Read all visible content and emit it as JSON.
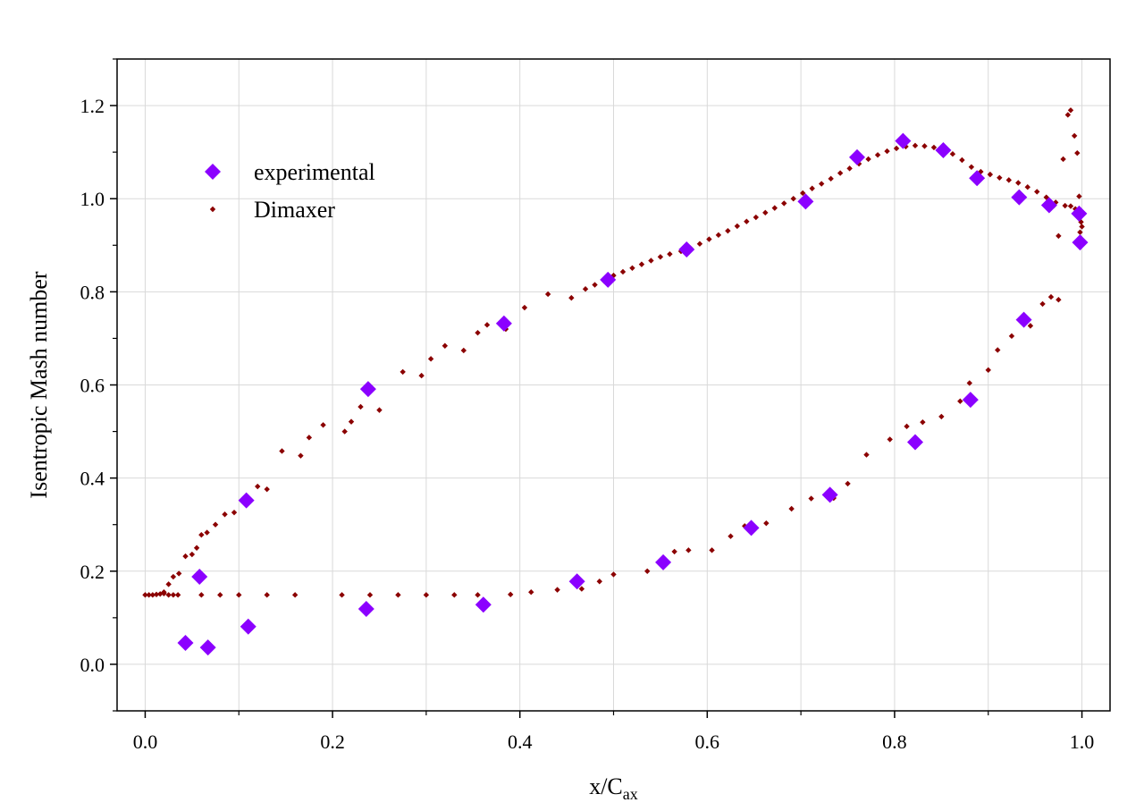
{
  "chart_data": {
    "type": "scatter",
    "title": "",
    "xlabel": "x/C",
    "xlabel_sub": "ax",
    "ylabel": "Isentropic Mash number",
    "xlim": [
      -0.03,
      1.03
    ],
    "ylim": [
      -0.1,
      1.3
    ],
    "x_ticks": [
      0.0,
      0.2,
      0.4,
      0.6,
      0.8,
      1.0
    ],
    "x_tick_labels": [
      "0.0",
      "0.2",
      "0.4",
      "0.6",
      "0.8",
      "1.0"
    ],
    "y_ticks": [
      0.0,
      0.2,
      0.4,
      0.6,
      0.8,
      1.0,
      1.2
    ],
    "y_tick_labels": [
      "0.0",
      "0.2",
      "0.4",
      "0.6",
      "0.8",
      "1.0",
      "1.2"
    ],
    "grid": true,
    "legend_position": "top-left",
    "series": [
      {
        "name": "experimental",
        "marker": "diamond",
        "color": "#8b00ff",
        "points": [
          [
            0.043,
            0.046
          ],
          [
            0.058,
            0.188
          ],
          [
            0.067,
            0.036
          ],
          [
            0.108,
            0.352
          ],
          [
            0.11,
            0.081
          ],
          [
            0.236,
            0.119
          ],
          [
            0.238,
            0.591
          ],
          [
            0.361,
            0.128
          ],
          [
            0.383,
            0.732
          ],
          [
            0.461,
            0.178
          ],
          [
            0.494,
            0.826
          ],
          [
            0.553,
            0.219
          ],
          [
            0.578,
            0.891
          ],
          [
            0.647,
            0.293
          ],
          [
            0.705,
            0.994
          ],
          [
            0.731,
            0.364
          ],
          [
            0.76,
            1.089
          ],
          [
            0.809,
            1.124
          ],
          [
            0.822,
            0.477
          ],
          [
            0.852,
            1.104
          ],
          [
            0.881,
            0.568
          ],
          [
            0.888,
            1.044
          ],
          [
            0.933,
            1.003
          ],
          [
            0.938,
            0.74
          ],
          [
            0.965,
            0.986
          ],
          [
            0.997,
            0.968
          ],
          [
            0.998,
            0.906
          ]
        ]
      },
      {
        "name": "Dimaxer",
        "marker": "small-diamond",
        "color": "#8b0000",
        "points": [
          [
            0.0,
            0.149
          ],
          [
            0.004,
            0.149
          ],
          [
            0.008,
            0.149
          ],
          [
            0.012,
            0.15
          ],
          [
            0.016,
            0.151
          ],
          [
            0.02,
            0.152
          ],
          [
            0.025,
            0.149
          ],
          [
            0.03,
            0.149
          ],
          [
            0.035,
            0.149
          ],
          [
            0.06,
            0.149
          ],
          [
            0.08,
            0.149
          ],
          [
            0.1,
            0.149
          ],
          [
            0.13,
            0.149
          ],
          [
            0.16,
            0.149
          ],
          [
            0.21,
            0.149
          ],
          [
            0.24,
            0.149
          ],
          [
            0.27,
            0.149
          ],
          [
            0.3,
            0.149
          ],
          [
            0.33,
            0.149
          ],
          [
            0.355,
            0.149
          ],
          [
            0.39,
            0.15
          ],
          [
            0.412,
            0.155
          ],
          [
            0.44,
            0.16
          ],
          [
            0.466,
            0.162
          ],
          [
            0.485,
            0.178
          ],
          [
            0.5,
            0.193
          ],
          [
            0.536,
            0.2
          ],
          [
            0.565,
            0.242
          ],
          [
            0.58,
            0.245
          ],
          [
            0.605,
            0.245
          ],
          [
            0.625,
            0.275
          ],
          [
            0.64,
            0.297
          ],
          [
            0.663,
            0.303
          ],
          [
            0.69,
            0.334
          ],
          [
            0.711,
            0.356
          ],
          [
            0.735,
            0.357
          ],
          [
            0.75,
            0.388
          ],
          [
            0.77,
            0.45
          ],
          [
            0.795,
            0.483
          ],
          [
            0.813,
            0.511
          ],
          [
            0.83,
            0.52
          ],
          [
            0.85,
            0.532
          ],
          [
            0.87,
            0.565
          ],
          [
            0.88,
            0.604
          ],
          [
            0.9,
            0.632
          ],
          [
            0.91,
            0.675
          ],
          [
            0.925,
            0.705
          ],
          [
            0.945,
            0.727
          ],
          [
            0.958,
            0.774
          ],
          [
            0.967,
            0.789
          ],
          [
            0.975,
            0.783
          ],
          [
            0.02,
            0.155
          ],
          [
            0.025,
            0.172
          ],
          [
            0.03,
            0.188
          ],
          [
            0.036,
            0.195
          ],
          [
            0.043,
            0.232
          ],
          [
            0.05,
            0.236
          ],
          [
            0.055,
            0.25
          ],
          [
            0.06,
            0.278
          ],
          [
            0.066,
            0.283
          ],
          [
            0.075,
            0.3
          ],
          [
            0.085,
            0.322
          ],
          [
            0.095,
            0.326
          ],
          [
            0.11,
            0.355
          ],
          [
            0.12,
            0.382
          ],
          [
            0.13,
            0.376
          ],
          [
            0.146,
            0.458
          ],
          [
            0.166,
            0.448
          ],
          [
            0.175,
            0.487
          ],
          [
            0.19,
            0.514
          ],
          [
            0.213,
            0.5
          ],
          [
            0.22,
            0.521
          ],
          [
            0.23,
            0.553
          ],
          [
            0.25,
            0.546
          ],
          [
            0.275,
            0.628
          ],
          [
            0.295,
            0.62
          ],
          [
            0.305,
            0.656
          ],
          [
            0.32,
            0.684
          ],
          [
            0.34,
            0.674
          ],
          [
            0.355,
            0.712
          ],
          [
            0.365,
            0.729
          ],
          [
            0.385,
            0.72
          ],
          [
            0.405,
            0.766
          ],
          [
            0.43,
            0.795
          ],
          [
            0.455,
            0.787
          ],
          [
            0.47,
            0.806
          ],
          [
            0.48,
            0.815
          ],
          [
            0.49,
            0.823
          ],
          [
            0.5,
            0.835
          ],
          [
            0.51,
            0.843
          ],
          [
            0.52,
            0.851
          ],
          [
            0.53,
            0.859
          ],
          [
            0.54,
            0.867
          ],
          [
            0.55,
            0.875
          ],
          [
            0.56,
            0.881
          ],
          [
            0.572,
            0.887
          ],
          [
            0.582,
            0.894
          ],
          [
            0.592,
            0.903
          ],
          [
            0.602,
            0.913
          ],
          [
            0.612,
            0.922
          ],
          [
            0.622,
            0.931
          ],
          [
            0.632,
            0.941
          ],
          [
            0.642,
            0.951
          ],
          [
            0.652,
            0.96
          ],
          [
            0.662,
            0.97
          ],
          [
            0.672,
            0.98
          ],
          [
            0.682,
            0.99
          ],
          [
            0.692,
            1.0
          ],
          [
            0.702,
            1.012
          ],
          [
            0.712,
            1.022
          ],
          [
            0.722,
            1.032
          ],
          [
            0.732,
            1.043
          ],
          [
            0.742,
            1.055
          ],
          [
            0.752,
            1.065
          ],
          [
            0.762,
            1.075
          ],
          [
            0.772,
            1.085
          ],
          [
            0.782,
            1.094
          ],
          [
            0.792,
            1.102
          ],
          [
            0.802,
            1.108
          ],
          [
            0.812,
            1.112
          ],
          [
            0.822,
            1.114
          ],
          [
            0.832,
            1.113
          ],
          [
            0.842,
            1.11
          ],
          [
            0.852,
            1.103
          ],
          [
            0.862,
            1.096
          ],
          [
            0.872,
            1.083
          ],
          [
            0.882,
            1.068
          ],
          [
            0.892,
            1.058
          ],
          [
            0.902,
            1.052
          ],
          [
            0.912,
            1.045
          ],
          [
            0.922,
            1.04
          ],
          [
            0.932,
            1.034
          ],
          [
            0.942,
            1.025
          ],
          [
            0.952,
            1.015
          ],
          [
            0.962,
            1.003
          ],
          [
            0.972,
            0.992
          ],
          [
            0.982,
            0.985
          ],
          [
            0.988,
            0.984
          ],
          [
            0.993,
            0.978
          ],
          [
            0.996,
            0.97
          ],
          [
            0.998,
            0.96
          ],
          [
            0.999,
            0.95
          ],
          [
            1.0,
            0.94
          ],
          [
            0.997,
            1.005
          ],
          [
            0.995,
            1.098
          ],
          [
            0.992,
            1.135
          ],
          [
            0.988,
            1.19
          ],
          [
            0.985,
            1.18
          ],
          [
            0.98,
            1.085
          ],
          [
            0.975,
            0.92
          ],
          [
            0.97,
            0.985
          ],
          [
            0.999,
            0.91
          ],
          [
            0.998,
            0.928
          ]
        ]
      }
    ]
  }
}
